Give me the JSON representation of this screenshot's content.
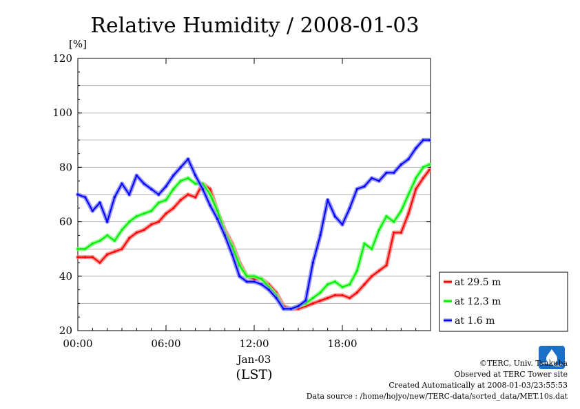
{
  "chart_data": {
    "type": "line",
    "title": "Relative Humidity / 2008-01-03",
    "ylabel": "[%]",
    "xlabel": "(LST)",
    "xdate_label": "Jan-03",
    "ylim": [
      20,
      120
    ],
    "yticks": [
      20,
      40,
      60,
      80,
      100,
      120
    ],
    "xlim": [
      "00:00",
      "24:00"
    ],
    "xticks": [
      "00:00",
      "06:00",
      "12:00",
      "18:00"
    ],
    "grid": true,
    "legend_position": "right",
    "series": [
      {
        "name": "at 29.5 m",
        "color": "#ff0000",
        "glow": "#ff8080",
        "x": [
          "00:00",
          "00:30",
          "01:00",
          "01:30",
          "02:00",
          "02:30",
          "03:00",
          "03:30",
          "04:00",
          "04:30",
          "05:00",
          "05:30",
          "06:00",
          "06:30",
          "07:00",
          "07:30",
          "08:00",
          "08:30",
          "09:00",
          "09:30",
          "10:00",
          "10:30",
          "11:00",
          "11:30",
          "12:00",
          "12:30",
          "13:00",
          "13:30",
          "14:00",
          "14:30",
          "15:00",
          "15:30",
          "16:00",
          "16:30",
          "17:00",
          "17:30",
          "18:00",
          "18:30",
          "19:00",
          "19:30",
          "20:00",
          "20:30",
          "21:00",
          "21:30",
          "22:00",
          "22:30",
          "23:00",
          "23:30",
          "23:55"
        ],
        "values": [
          47,
          47,
          47,
          45,
          48,
          49,
          50,
          54,
          56,
          57,
          59,
          60,
          63,
          65,
          68,
          70,
          69,
          74,
          72,
          64,
          57,
          52,
          45,
          40,
          39,
          39,
          37,
          34,
          29,
          28,
          28,
          29,
          30,
          31,
          32,
          33,
          33,
          32,
          34,
          37,
          40,
          42,
          44,
          56,
          56,
          63,
          72,
          76,
          79
        ]
      },
      {
        "name": "at 12.3 m",
        "color": "#00ee00",
        "glow": "#80ff80",
        "x": [
          "00:00",
          "00:30",
          "01:00",
          "01:30",
          "02:00",
          "02:30",
          "03:00",
          "03:30",
          "04:00",
          "04:30",
          "05:00",
          "05:30",
          "06:00",
          "06:30",
          "07:00",
          "07:30",
          "08:00",
          "08:30",
          "09:00",
          "09:30",
          "10:00",
          "10:30",
          "11:00",
          "11:30",
          "12:00",
          "12:30",
          "13:00",
          "13:30",
          "14:00",
          "14:30",
          "15:00",
          "15:30",
          "16:00",
          "16:30",
          "17:00",
          "17:30",
          "18:00",
          "18:30",
          "19:00",
          "19:30",
          "20:00",
          "20:30",
          "21:00",
          "21:30",
          "22:00",
          "22:30",
          "23:00",
          "23:30",
          "23:55"
        ],
        "values": [
          50,
          50,
          52,
          53,
          55,
          53,
          57,
          60,
          62,
          63,
          64,
          67,
          68,
          72,
          75,
          76,
          74,
          74,
          70,
          64,
          56,
          51,
          44,
          40,
          40,
          39,
          36,
          33,
          28,
          28,
          29,
          30,
          32,
          34,
          37,
          38,
          36,
          37,
          42,
          52,
          50,
          57,
          62,
          60,
          64,
          70,
          76,
          80,
          81
        ]
      },
      {
        "name": "at 1.6 m",
        "color": "#0000ff",
        "glow": "#8080ff",
        "x": [
          "00:00",
          "00:30",
          "01:00",
          "01:30",
          "02:00",
          "02:30",
          "03:00",
          "03:30",
          "04:00",
          "04:30",
          "05:00",
          "05:30",
          "06:00",
          "06:30",
          "07:00",
          "07:30",
          "08:00",
          "08:30",
          "09:00",
          "09:30",
          "10:00",
          "10:30",
          "11:00",
          "11:30",
          "12:00",
          "12:30",
          "13:00",
          "13:30",
          "14:00",
          "14:30",
          "15:00",
          "15:30",
          "16:00",
          "16:30",
          "17:00",
          "17:30",
          "18:00",
          "18:30",
          "19:00",
          "19:30",
          "20:00",
          "20:30",
          "21:00",
          "21:30",
          "22:00",
          "22:30",
          "23:00",
          "23:30",
          "23:55"
        ],
        "values": [
          70,
          69,
          64,
          67,
          60,
          69,
          74,
          70,
          77,
          74,
          72,
          70,
          73,
          77,
          80,
          83,
          77,
          72,
          66,
          61,
          55,
          48,
          40,
          38,
          38,
          37,
          35,
          32,
          28,
          28,
          29,
          31,
          45,
          55,
          68,
          62,
          59,
          65,
          72,
          73,
          76,
          75,
          78,
          78,
          81,
          83,
          87,
          90,
          90
        ]
      }
    ]
  },
  "footer": {
    "copyright": "©TERC, Univ. Tsukuba",
    "observed": "Observed at TERC Tower site",
    "created": "Created Automatically at 2008-01-03/23:55:53",
    "source": "Data source : /home/hojyo/new/TERC-data/sorted_data/MET.10s.dat"
  },
  "logo": {
    "name": "terc-logo",
    "text": "TERC",
    "color": "#1a6fc7"
  }
}
